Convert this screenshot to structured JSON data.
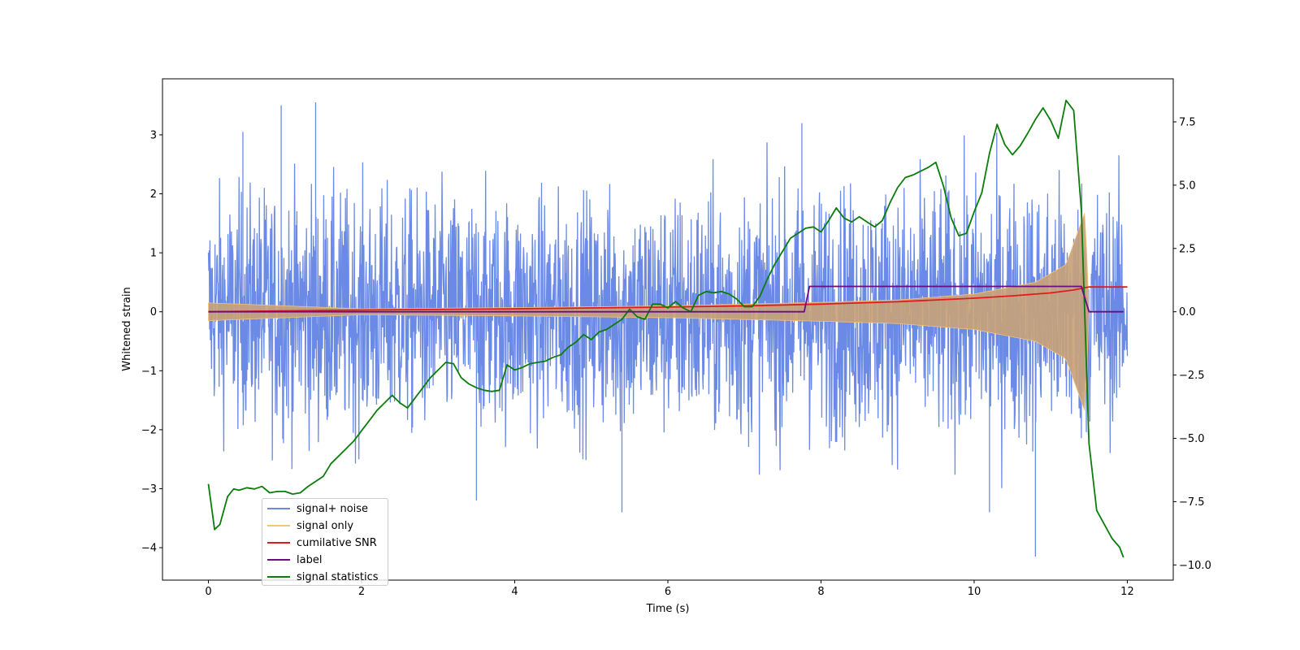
{
  "chart_data": {
    "type": "line",
    "xlabel": "Time (s)",
    "ylabel": "Whitened strain",
    "y2label": "",
    "xlim": [
      -0.6,
      12.6
    ],
    "ylim": [
      -4.55,
      3.95
    ],
    "y2lim": [
      -10.6,
      9.2
    ],
    "x_ticks": [
      0,
      2,
      4,
      6,
      8,
      10,
      12
    ],
    "y_ticks": [
      -4,
      -3,
      -2,
      -1,
      0,
      1,
      2,
      3
    ],
    "y2_ticks": [
      -10.0,
      -7.5,
      -5.0,
      -2.5,
      0.0,
      2.5,
      5.0,
      7.5
    ],
    "x_tick_labels": [
      "0",
      "2",
      "4",
      "6",
      "8",
      "10",
      "12"
    ],
    "y_tick_labels": [
      "−4",
      "−3",
      "−2",
      "−1",
      "0",
      "1",
      "2",
      "3"
    ],
    "y2_tick_labels": [
      "−10.0",
      "−7.5",
      "−5.0",
      "−2.5",
      "0.0",
      "2.5",
      "5.0",
      "7.5"
    ],
    "legend_position": "lower-left",
    "grid": false,
    "series": [
      {
        "name": "signal+ noise",
        "color": "#6b8ae6",
        "axis": "left",
        "kind": "noise",
        "x_range": [
          0,
          12
        ],
        "upper_envelope": [
          [
            0,
            2.5
          ],
          [
            1,
            2.6
          ],
          [
            2,
            2.5
          ],
          [
            4,
            2.4
          ],
          [
            6,
            2.5
          ],
          [
            8,
            2.6
          ],
          [
            10,
            2.7
          ],
          [
            11.4,
            2.8
          ],
          [
            12,
            2.4
          ]
        ],
        "lower_envelope": [
          [
            0,
            -2.2
          ],
          [
            1,
            -2.6
          ],
          [
            2,
            -2.6
          ],
          [
            4,
            -2.5
          ],
          [
            6,
            -2.6
          ],
          [
            8,
            -2.7
          ],
          [
            10,
            -2.8
          ],
          [
            11.4,
            -2.8
          ],
          [
            12,
            -2.2
          ]
        ],
        "extremes": [
          [
            0.95,
            3.5
          ],
          [
            1.4,
            3.55
          ],
          [
            0.45,
            3.05
          ],
          [
            7.75,
            3.2
          ],
          [
            10.8,
            -4.15
          ],
          [
            5.4,
            -3.4
          ],
          [
            3.5,
            -3.2
          ],
          [
            10.2,
            -3.4
          ]
        ]
      },
      {
        "name": "signal only",
        "color": "#f5c37a",
        "axis": "left",
        "kind": "chirp",
        "x_range": [
          0,
          11.5
        ],
        "envelope": [
          [
            0,
            0.15
          ],
          [
            2,
            0.05
          ],
          [
            4,
            0.07
          ],
          [
            6,
            0.1
          ],
          [
            8,
            0.16
          ],
          [
            9,
            0.2
          ],
          [
            10,
            0.3
          ],
          [
            10.8,
            0.5
          ],
          [
            11.2,
            0.8
          ],
          [
            11.45,
            1.7
          ],
          [
            11.5,
            0
          ]
        ]
      },
      {
        "name": "cumilative SNR",
        "color": "#e31a1c",
        "axis": "left",
        "x": [
          0,
          2,
          4,
          6,
          7,
          8,
          9,
          10,
          10.5,
          11,
          11.3,
          11.45,
          11.5,
          12
        ],
        "values": [
          0.0,
          0.03,
          0.05,
          0.08,
          0.1,
          0.13,
          0.17,
          0.23,
          0.27,
          0.32,
          0.37,
          0.41,
          0.42,
          0.42
        ]
      },
      {
        "name": "label",
        "color": "#6a0d83",
        "axis": "right",
        "x": [
          0,
          7.78,
          7.85,
          11.4,
          11.5,
          11.95
        ],
        "values": [
          0,
          0,
          1,
          1,
          0,
          0
        ]
      },
      {
        "name": "signal statistics",
        "color": "#0a7d0a",
        "axis": "right",
        "x": [
          0,
          0.08,
          0.15,
          0.25,
          0.33,
          0.4,
          0.5,
          0.6,
          0.7,
          0.8,
          0.9,
          1.0,
          1.1,
          1.2,
          1.3,
          1.4,
          1.5,
          1.6,
          1.7,
          1.8,
          1.9,
          2.0,
          2.1,
          2.2,
          2.3,
          2.4,
          2.5,
          2.6,
          2.7,
          2.8,
          2.9,
          3.0,
          3.1,
          3.2,
          3.3,
          3.4,
          3.5,
          3.6,
          3.7,
          3.8,
          3.9,
          4.0,
          4.1,
          4.2,
          4.3,
          4.4,
          4.5,
          4.6,
          4.7,
          4.8,
          4.9,
          5.0,
          5.1,
          5.2,
          5.3,
          5.4,
          5.5,
          5.6,
          5.7,
          5.8,
          5.9,
          6.0,
          6.1,
          6.2,
          6.3,
          6.4,
          6.5,
          6.6,
          6.7,
          6.8,
          6.9,
          7.0,
          7.1,
          7.2,
          7.3,
          7.4,
          7.5,
          7.6,
          7.7,
          7.8,
          7.9,
          8.0,
          8.1,
          8.2,
          8.3,
          8.4,
          8.5,
          8.6,
          8.7,
          8.8,
          8.9,
          9.0,
          9.1,
          9.2,
          9.3,
          9.4,
          9.5,
          9.6,
          9.7,
          9.8,
          9.9,
          10.0,
          10.1,
          10.2,
          10.3,
          10.4,
          10.5,
          10.6,
          10.7,
          10.8,
          10.9,
          11.0,
          11.1,
          11.2,
          11.3,
          11.4,
          11.5,
          11.6,
          11.7,
          11.8,
          11.9,
          11.95
        ],
        "values": [
          -6.8,
          -8.6,
          -8.4,
          -7.3,
          -7.0,
          -7.05,
          -6.95,
          -7.0,
          -6.9,
          -7.15,
          -7.1,
          -7.1,
          -7.2,
          -7.15,
          -6.9,
          -6.7,
          -6.5,
          -6.0,
          -5.7,
          -5.4,
          -5.1,
          -4.7,
          -4.3,
          -3.9,
          -3.6,
          -3.3,
          -3.6,
          -3.8,
          -3.4,
          -3.0,
          -2.6,
          -2.3,
          -2.0,
          -2.05,
          -2.6,
          -2.85,
          -3.0,
          -3.1,
          -3.15,
          -3.1,
          -2.1,
          -2.3,
          -2.2,
          -2.05,
          -2.0,
          -1.95,
          -1.8,
          -1.7,
          -1.4,
          -1.2,
          -0.9,
          -1.1,
          -0.8,
          -0.7,
          -0.5,
          -0.3,
          0.1,
          -0.2,
          -0.3,
          0.3,
          0.3,
          0.15,
          0.4,
          0.15,
          0.0,
          0.65,
          0.8,
          0.75,
          0.8,
          0.7,
          0.5,
          0.2,
          0.2,
          0.6,
          1.3,
          1.9,
          2.4,
          2.9,
          3.1,
          3.3,
          3.35,
          3.15,
          3.6,
          4.1,
          3.7,
          3.55,
          3.75,
          3.55,
          3.35,
          3.6,
          4.3,
          4.9,
          5.3,
          5.4,
          5.55,
          5.7,
          5.9,
          4.95,
          3.7,
          3.0,
          3.1,
          3.95,
          4.7,
          6.25,
          7.4,
          6.6,
          6.2,
          6.55,
          7.05,
          7.6,
          8.05,
          7.55,
          6.85,
          8.35,
          7.95,
          4.0,
          -5.2,
          -7.85,
          -8.4,
          -8.95,
          -9.3,
          -9.7
        ]
      }
    ]
  }
}
